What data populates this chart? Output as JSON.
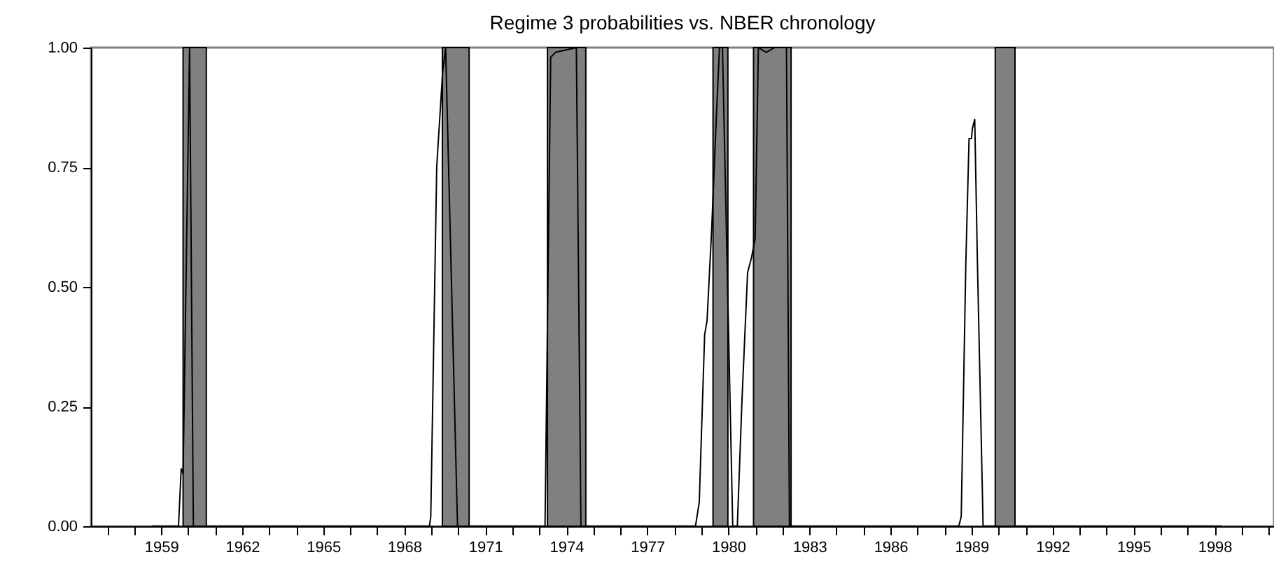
{
  "chart_data": {
    "type": "line",
    "title": "Regime 3 probabilities vs. NBER chronology",
    "x": [
      1958.65,
      1959.64,
      1959.74,
      1959.81,
      1960.05,
      1960.19,
      1968.93,
      1968.98,
      1969.2,
      1969.42,
      1969.53,
      1969.97,
      1973.21,
      1973.42,
      1973.6,
      1974.37,
      1974.54,
      1978.78,
      1978.92,
      1979.12,
      1979.21,
      1979.38,
      1979.55,
      1979.67,
      1979.78,
      1980.16,
      1980.33,
      1980.5,
      1980.71,
      1980.85,
      1980.99,
      1981.11,
      1981.4,
      1981.7,
      1982.15,
      1982.26,
      1988.53,
      1988.62,
      1988.79,
      1988.91,
      1989.0,
      1989.03,
      1989.12,
      1989.22,
      1989.43,
      1998.26
    ],
    "series": [
      {
        "color": "#000000",
        "values": [
          0,
          0,
          0.12,
          0.11,
          1.0,
          0,
          0,
          0.02,
          0.75,
          0.95,
          1.0,
          0,
          0,
          0.98,
          0.99,
          1.0,
          0,
          0,
          0.05,
          0.4,
          0.43,
          0.62,
          0.85,
          1.0,
          1.0,
          0,
          0,
          0.26,
          0.53,
          0.56,
          0.6,
          1.0,
          0.99,
          1.0,
          1.0,
          0,
          0,
          0.02,
          0.55,
          0.81,
          0.81,
          0.83,
          0.85,
          0.55,
          0,
          0
        ]
      }
    ],
    "xlim": [
      1956.4,
      2000.2
    ],
    "xticks": [
      {
        "value": 1957,
        "label": null
      },
      {
        "value": 1958,
        "label": null
      },
      1959,
      {
        "value": 1960,
        "label": null
      },
      {
        "value": 1961,
        "label": null
      },
      1962,
      {
        "value": 1963,
        "label": null
      },
      {
        "value": 1964,
        "label": null
      },
      1965,
      {
        "value": 1966,
        "label": null
      },
      {
        "value": 1967,
        "label": null
      },
      1968,
      {
        "value": 1969,
        "label": null
      },
      {
        "value": 1970,
        "label": null
      },
      1971,
      {
        "value": 1972,
        "label": null
      },
      {
        "value": 1973,
        "label": null
      },
      1974,
      {
        "value": 1975,
        "label": null
      },
      {
        "value": 1976,
        "label": null
      },
      1977,
      {
        "value": 1978,
        "label": null
      },
      {
        "value": 1979,
        "label": null
      },
      1980,
      {
        "value": 1981,
        "label": null
      },
      {
        "value": 1982,
        "label": null
      },
      1983,
      {
        "value": 1984,
        "label": null
      },
      {
        "value": 1985,
        "label": null
      },
      1986,
      {
        "value": 1987,
        "label": null
      },
      {
        "value": 1988,
        "label": null
      },
      1989,
      {
        "value": 1990,
        "label": null
      },
      {
        "value": 1991,
        "label": null
      },
      1992,
      {
        "value": 1993,
        "label": null
      },
      {
        "value": 1994,
        "label": null
      },
      1995,
      {
        "value": 1996,
        "label": null
      },
      {
        "value": 1997,
        "label": null
      },
      1998,
      {
        "value": 1999,
        "label": null
      },
      {
        "value": 2000,
        "label": null
      }
    ],
    "ylim": [
      0,
      1
    ],
    "yticks": [
      {
        "value": 0,
        "label": "0.00"
      },
      {
        "value": 0.25,
        "label": "0.25"
      },
      {
        "value": 0.5,
        "label": "0.50"
      },
      {
        "value": 0.75,
        "label": "0.75"
      },
      {
        "value": 1,
        "label": "1.00"
      }
    ],
    "bands": [
      {
        "axis": "x",
        "from": 1959.81,
        "to": 1960.67,
        "color": "#808080"
      },
      {
        "axis": "x",
        "from": 1969.41,
        "to": 1970.4,
        "color": "#808080"
      },
      {
        "axis": "x",
        "from": 1973.3,
        "to": 1974.72,
        "color": "#808080"
      },
      {
        "axis": "x",
        "from": 1979.43,
        "to": 1979.98,
        "color": "#808080"
      },
      {
        "axis": "x",
        "from": 1980.93,
        "to": 1982.32,
        "color": "#808080"
      },
      {
        "axis": "x",
        "from": 1989.88,
        "to": 1990.61,
        "color": "#808080"
      }
    ],
    "grid": false
  }
}
